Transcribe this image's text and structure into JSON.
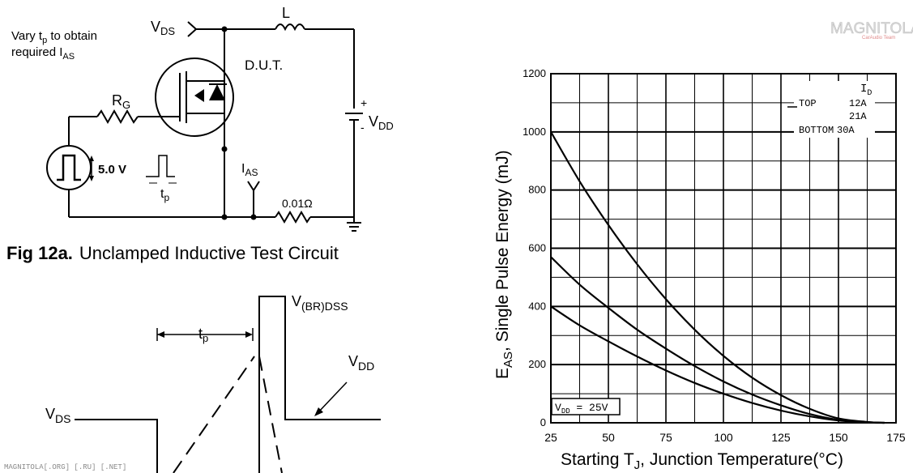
{
  "circuit": {
    "vary_line1": "Vary t",
    "vary_sub": "p",
    "vary_line1_tail": " to obtain",
    "vary_line2": "required I",
    "vary_line2_sub": "AS",
    "vds": "V",
    "vds_sub": "DS",
    "inductor": "L",
    "dut": "D.U.T.",
    "rg": "R",
    "rg_sub": "G",
    "plus": "+",
    "minus": "-",
    "vdd": "V",
    "vdd_sub": "DD",
    "pulse_amp": "5.0 V",
    "tp": "t",
    "tp_sub": "p",
    "ias": "I",
    "ias_sub": "AS",
    "shunt": "0.01Ω",
    "caption_bold": "Fig 12a.",
    "caption_text": "Unclamped Inductive Test Circuit"
  },
  "waveform": {
    "vbr": "V",
    "vbr_sub": "(BR)DSS",
    "tp": "t",
    "tp_sub": "p",
    "vdd": "V",
    "vdd_sub": "DD",
    "vds": "V",
    "vds_sub": "DS"
  },
  "watermark": {
    "logo": "MAGNITOLA",
    "logo_sub": "CarAudio Team",
    "footer": "MAGNITOLA[.ORG] [.RU] [.NET]"
  },
  "chart_data": {
    "type": "line",
    "xlabel": "Starting T",
    "xlabel_sub": "J",
    "xlabel_tail": ", Junction Temperature(°C)",
    "ylabel": "E",
    "ylabel_sub": "AS",
    "ylabel_tail": ", Single Pulse Energy (mJ)",
    "xlim": [
      25,
      175
    ],
    "ylim": [
      0,
      1200
    ],
    "xticks": [
      25,
      50,
      75,
      100,
      125,
      150,
      175
    ],
    "yticks": [
      0,
      200,
      400,
      600,
      800,
      1000,
      1200
    ],
    "grid": true,
    "legend": {
      "header": "I",
      "header_sub": "D",
      "rows": [
        {
          "label": "TOP",
          "value": "12A"
        },
        {
          "label": "",
          "value": "21A"
        },
        {
          "label": "BOTTOM",
          "value": "30A"
        }
      ]
    },
    "annotation": {
      "text": "V",
      "sub": "DD",
      "tail": " = 25V"
    },
    "series": [
      {
        "x": [
          25,
          37.5,
          50,
          62.5,
          75,
          87.5,
          100,
          112.5,
          125,
          137.5,
          150,
          162.5,
          170
        ],
        "values": [
          1000,
          830,
          680,
          545,
          425,
          320,
          230,
          155,
          95,
          48,
          15,
          3,
          0
        ]
      },
      {
        "x": [
          25,
          37.5,
          50,
          62.5,
          75,
          87.5,
          100,
          112.5,
          125,
          137.5,
          150,
          162.5,
          170
        ],
        "values": [
          570,
          475,
          395,
          320,
          255,
          195,
          142,
          97,
          60,
          30,
          10,
          2,
          0
        ]
      },
      {
        "x": [
          25,
          37.5,
          50,
          62.5,
          75,
          87.5,
          100,
          112.5,
          125,
          137.5,
          150,
          162.5,
          170
        ],
        "values": [
          400,
          335,
          280,
          228,
          180,
          137,
          100,
          68,
          42,
          22,
          8,
          1,
          0
        ]
      }
    ]
  }
}
